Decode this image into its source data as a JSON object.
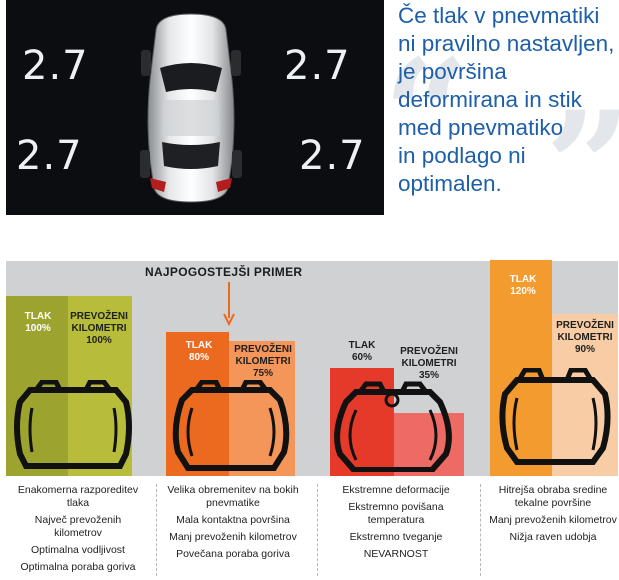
{
  "dashboard": {
    "pressure_front_left": "2.7",
    "pressure_front_right": "2.7",
    "pressure_rear_left": "2.7",
    "pressure_rear_right": "2.7"
  },
  "quote": {
    "lines": [
      "Če tlak v pnevmatiki",
      "ni pravilno nastavljen,",
      "je površina",
      "deformirana in stik",
      "med pnevmatiko",
      "in podlago ni",
      "optimalen."
    ],
    "color": "#1d5fa8"
  },
  "highlight_label": "NAJPOGOSTEJŠI PRIMER",
  "scenarios": [
    {
      "pressure_label": "TLAK",
      "pressure_value": "100%",
      "mileage_label_1": "PREVOŽENI",
      "mileage_label_2": "KILOMETRI",
      "mileage_value": "100%",
      "pressure_pct": 100,
      "mileage_pct": 100,
      "pressure_color": "#9ca32e",
      "mileage_color": "#b7bd3a",
      "notes": [
        "Enakomerna razporeditev tlaka",
        "Največ prevoženih kilometrov",
        "Optimalna vodljivost",
        "Optimalna poraba goriva"
      ]
    },
    {
      "pressure_label": "TLAK",
      "pressure_value": "80%",
      "mileage_label_1": "PREVOŽENI",
      "mileage_label_2": "KILOMETRI",
      "mileage_value": "75%",
      "pressure_pct": 80,
      "mileage_pct": 75,
      "pressure_color": "#ec6a1f",
      "mileage_color": "#f4955a",
      "notes": [
        "Velika obremenitev na bokih pnevmatike",
        "Mala kontaktna površina",
        "Manj prevoženih kilometrov",
        "Povečana poraba goriva"
      ]
    },
    {
      "pressure_label": "TLAK",
      "pressure_value": "60%",
      "mileage_label_1": "PREVOŽENI",
      "mileage_label_2": "KILOMETRI",
      "mileage_value": "35%",
      "pressure_pct": 60,
      "mileage_pct": 35,
      "pressure_color": "#e53a2a",
      "mileage_color": "#ee6b65",
      "notes": [
        "Ekstremne deformacije",
        "Ekstremno povišana temperatura",
        "Ekstremno tveganje",
        "NEVARNOST"
      ]
    },
    {
      "pressure_label": "TLAK",
      "pressure_value": "120%",
      "mileage_label_1": "PREVOŽENI",
      "mileage_label_2": "KILOMETRI",
      "mileage_value": "90%",
      "pressure_pct": 120,
      "mileage_pct": 90,
      "pressure_color": "#f39b2f",
      "mileage_color": "#f8cda6",
      "notes": [
        "Hitrejša obraba sredine tekalne površine",
        "Manj prevoženih kilometrov",
        "Nižja raven udobja"
      ]
    }
  ]
}
